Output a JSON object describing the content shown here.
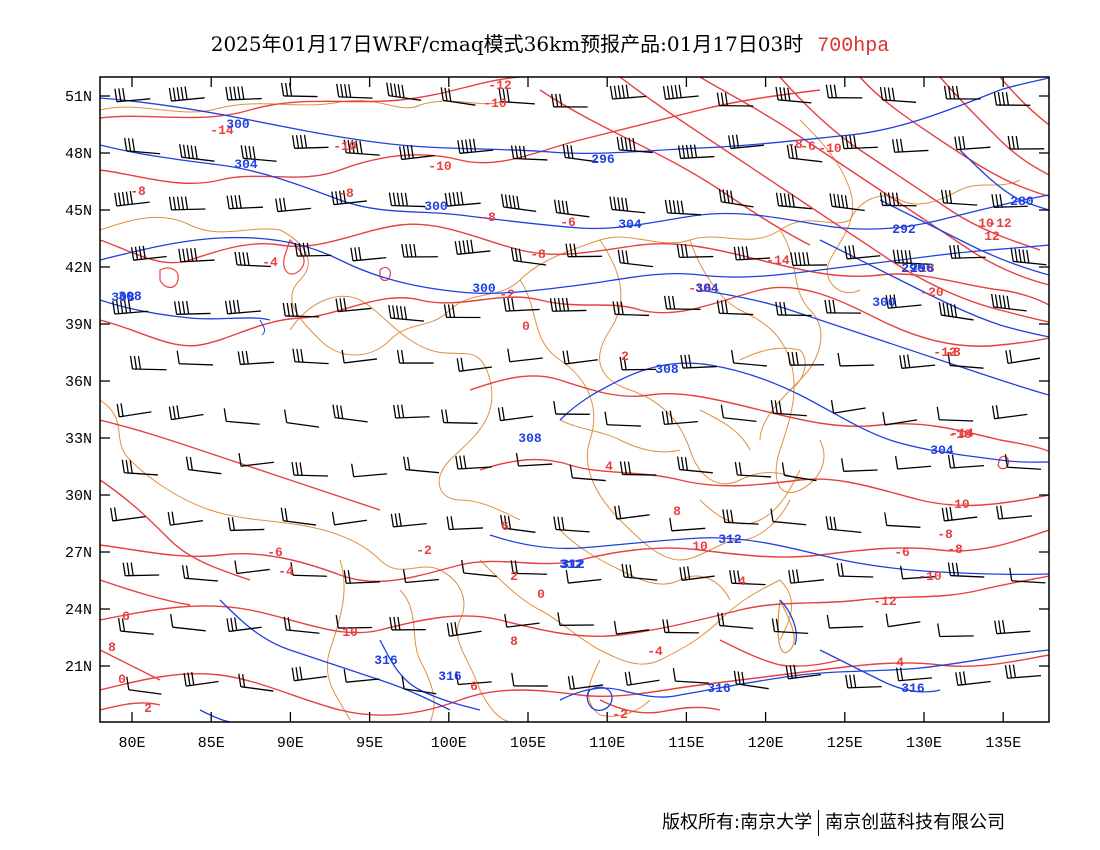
{
  "title": {
    "text": "2025年01月17日WRF/cmaq模式36km预报产品:01月17日03时",
    "level": "700hpa"
  },
  "axes": {
    "lat_labels": [
      "51N",
      "48N",
      "45N",
      "42N",
      "39N",
      "36N",
      "33N",
      "30N",
      "27N",
      "24N",
      "21N"
    ],
    "lon_labels": [
      "80E",
      "85E",
      "90E",
      "95E",
      "100E",
      "105E",
      "110E",
      "115E",
      "120E",
      "125E",
      "130E",
      "135E"
    ]
  },
  "colors": {
    "temperature": "#e84040",
    "height": "#2040e0",
    "border": "#e09040",
    "wind": "#000000"
  },
  "labels": {
    "temperature": [
      "-12",
      "-10",
      "-14",
      "-10",
      "-8",
      "-10",
      "-8",
      "-8",
      "-10",
      "-8",
      "-6",
      "-8",
      "-4",
      "-2",
      "0",
      "2",
      "4",
      "6",
      "8",
      "10",
      "-6",
      "-8",
      "-10",
      "-12",
      "-14",
      "-16",
      "-18",
      "-20",
      "-12",
      "-14",
      "-10",
      "-8",
      "-6",
      "-4",
      "-2",
      "0",
      "2",
      "4",
      "6",
      "8",
      "10",
      "-4",
      "0",
      "2",
      "-2",
      "4",
      "6",
      "8",
      "10",
      "12",
      "-6",
      "-8",
      "-10",
      "-12"
    ],
    "height": [
      "300",
      "304",
      "296",
      "300",
      "304",
      "308",
      "308",
      "312",
      "316",
      "316",
      "312",
      "316",
      "296",
      "300",
      "304",
      "308",
      "292",
      "296",
      "280",
      "300",
      "304",
      "308",
      "312",
      "316"
    ]
  },
  "footer": {
    "left": "版权所有:南京大学",
    "right": "南京创蓝科技有限公司"
  }
}
